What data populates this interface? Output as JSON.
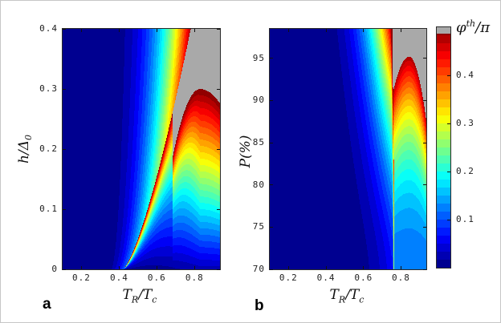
{
  "figure": {
    "bg": "#ffffff",
    "border_color": "#c6c6c6"
  },
  "panel_letters": {
    "a": "a",
    "b": "b"
  },
  "colorbar_ui": {
    "title": {
      "phi": "φ",
      "sup": "th",
      "rest": "/π"
    },
    "tick_labels": [
      "0.1",
      "0.2",
      "0.3",
      "0.4"
    ]
  },
  "chart_data": {
    "type": "heatmap",
    "subtype": "filled-contour, two panels, MATLAB jet colormap with discrete bands",
    "colorbar": {
      "label": "φ^th/π",
      "range": [
        0,
        0.5
      ],
      "ticks": [
        0.1,
        0.2,
        0.3,
        0.4
      ],
      "gray_region_meaning": "values above colormap top (π-state region shown gray)"
    },
    "colormap": {
      "levels": 30,
      "vmax": 0.5,
      "gray": "#a9a9a9",
      "gray_from": 0.486
    },
    "panels": [
      {
        "id": "a",
        "label": "a",
        "xlabel": {
          "t1": "T",
          "s1": "R",
          "t2": "/T",
          "s2": "c"
        },
        "ylabel": {
          "t1": "h/Δ",
          "s1": "0"
        },
        "xrange": [
          0.1,
          0.935
        ],
        "yrange": [
          0,
          0.4
        ],
        "xticks": [
          0.2,
          0.4,
          0.6,
          0.8
        ],
        "xtick_labels": [
          "0.2",
          "0.4",
          "0.6",
          "0.8"
        ],
        "yticks": [
          0,
          0.1,
          0.2,
          0.3,
          0.4
        ],
        "ytick_labels": [
          "0",
          "0.1",
          "0.2",
          "0.3",
          "0.4"
        ],
        "features": {
          "ridge": "sharp 0-π transition line from (0.42,0) to (0.78,0.4)",
          "gray": "π-state wedge in upper right, tip near (0.68,0.19)",
          "dome": "red 0-state dome, apex near (0.83,0.30), extends to right edge",
          "bubble": "cyan low-φ bubble centered near (0.78,0.08)"
        },
        "sample_grid": {
          "x": [
            0.2,
            0.3,
            0.4,
            0.5,
            0.6,
            0.7,
            0.8,
            0.9
          ],
          "y": [
            0.05,
            0.1,
            0.15,
            0.2,
            0.25,
            0.3,
            0.35,
            0.4
          ],
          "phi_over_pi": [
            [
              0.01,
              0.01,
              0.01,
              0.03,
              0.08,
              0.12,
              0.13,
              0.1
            ],
            [
              0.01,
              0.01,
              0.01,
              0.02,
              0.1,
              0.15,
              0.19,
              0.15
            ],
            [
              0.01,
              0.01,
              0.01,
              0.02,
              0.13,
              0.22,
              0.27,
              0.24
            ],
            [
              0.01,
              0.01,
              0.01,
              0.02,
              0.05,
              0.3,
              0.36,
              0.33
            ],
            [
              0.01,
              0.01,
              0.01,
              0.02,
              0.06,
              null,
              0.44,
              0.41
            ],
            [
              0.01,
              0.01,
              0.01,
              0.03,
              0.08,
              null,
              null,
              null
            ],
            [
              0.01,
              0.01,
              0.02,
              0.04,
              0.1,
              0.26,
              null,
              null
            ],
            [
              0.01,
              0.01,
              0.02,
              0.05,
              0.13,
              0.3,
              null,
              null
            ]
          ]
        },
        "model": {
          "type": "fan_dome_a",
          "yspan": 0.4,
          "ridge": {
            "x0": 0.42,
            "dx": 0.36,
            "pow": 0.73
          },
          "fan": {
            "a": 0.3,
            "pow": 2.6,
            "kmin": 0.22,
            "amp": 0.485
          },
          "rim": {
            "xmin": 0.684,
            "ax": 0.83,
            "ay": 0.3,
            "cl": 5.3,
            "cr": 2.2
          },
          "right": {
            "b0": 0.05,
            "b1": 0.95,
            "r0": 0.25,
            "r1": 0.75,
            "rx": 0.45,
            "rs": 0.38,
            "rpow": 2,
            "blend": 3,
            "amp": 0.5
          }
        }
      },
      {
        "id": "b",
        "label": "b",
        "xlabel": {
          "t1": "T",
          "s1": "R",
          "t2": "/T",
          "s2": "c"
        },
        "ylabel": {
          "t1": "P(%)"
        },
        "xrange": [
          0.1,
          0.935
        ],
        "yrange": [
          70,
          98.5
        ],
        "xticks": [
          0.2,
          0.4,
          0.6,
          0.8
        ],
        "xtick_labels": [
          "0.2",
          "0.4",
          "0.6",
          "0.8"
        ],
        "yticks": [
          70,
          75,
          80,
          85,
          90,
          95
        ],
        "ytick_labels": [
          "70",
          "75",
          "80",
          "85",
          "90",
          "95"
        ],
        "features": {
          "ridge": "near-vertical sharp transition stripe at T_R/T_c ≈ 0.77",
          "gray": "π-state region top-right, above dome rim",
          "dome": "red/orange dome column 0.78<x<0.91, apex near (0.84, P=95)"
        },
        "sample_grid": {
          "x": [
            0.2,
            0.3,
            0.4,
            0.5,
            0.6,
            0.7,
            0.8,
            0.9
          ],
          "P": [
            70,
            75,
            80,
            85,
            90,
            95,
            98
          ],
          "phi_over_pi": [
            [
              0.01,
              0.01,
              0.01,
              0.01,
              0.02,
              0.06,
              0.12,
              0.12
            ],
            [
              0.01,
              0.01,
              0.01,
              0.01,
              0.03,
              0.08,
              0.14,
              0.14
            ],
            [
              0.01,
              0.01,
              0.01,
              0.02,
              0.04,
              0.1,
              0.17,
              0.17
            ],
            [
              0.01,
              0.01,
              0.01,
              0.02,
              0.05,
              0.14,
              0.23,
              0.27
            ],
            [
              0.01,
              0.01,
              0.01,
              0.02,
              0.07,
              0.2,
              0.31,
              null
            ],
            [
              0.01,
              0.01,
              0.02,
              0.03,
              0.12,
              0.35,
              0.45,
              null
            ],
            [
              0.01,
              0.01,
              0.02,
              0.04,
              0.15,
              0.45,
              null,
              null
            ]
          ]
        },
        "model": {
          "type": "fan_dome_b",
          "P0": 70,
          "Pspan": 28.5,
          "ridge": {
            "x0": 0.765,
            "dx": -0.012,
            "pow": 1.6
          },
          "fan": {
            "a0": 0.4,
            "a1": -0.1,
            "pow": 3.2,
            "kmin": 0.15,
            "kspan": 0.85,
            "kpow": 1.6,
            "amp": 0.485
          },
          "bump": {
            "amp": 0.3,
            "sigma": 0.005,
            "fade": 0.5
          },
          "rim": {
            "ax": 0.843,
            "aP": 95.2,
            "cl": 580,
            "cr": 900
          },
          "dome": {
            "base": 0.12,
            "span": 0.36,
            "pow": 2
          }
        }
      }
    ]
  }
}
